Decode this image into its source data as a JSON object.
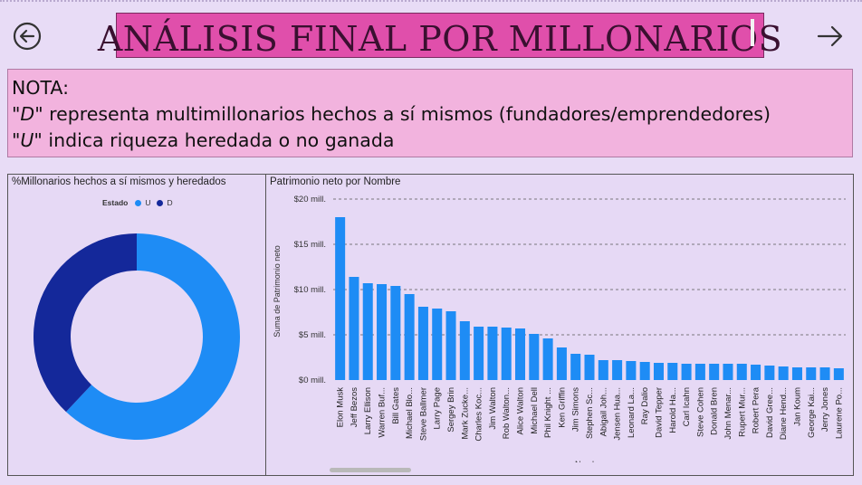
{
  "page": {
    "title": "ANÁLISIS FINAL POR MILLONARIOS",
    "back_icon": "arrow-left-circle-icon",
    "next_icon": "arrow-right-icon",
    "note": {
      "heading": "NOTA:",
      "line1_key": "\"D\"",
      "line1_text": " representa multimillonarios hechos a sí mismos (fundadores/emprendedores)",
      "line2_key": "\"U\"",
      "line2_text": " indica riqueza heredada o no ganada"
    },
    "colors": {
      "U": "#1e8cf5",
      "D": "#14289a",
      "title_bg": "#e04fab",
      "note_bg": "#f2b3de"
    }
  },
  "donut": {
    "title": "%Millonarios hechos a sí mismos y heredados",
    "legend_title": "Estado",
    "legend": [
      "U",
      "D"
    ]
  },
  "bar": {
    "title": "Patrimonio neto por Nombre"
  },
  "chart_data": [
    {
      "type": "pie",
      "variant": "donut",
      "title": "%Millonarios hechos a sí mismos y heredados",
      "legend_title": "Estado",
      "legend_position": "top",
      "slices": [
        {
          "label": "U",
          "value": 62,
          "color": "#1e8cf5"
        },
        {
          "label": "D",
          "value": 38,
          "color": "#14289a"
        }
      ]
    },
    {
      "type": "bar",
      "title": "Patrimonio neto por Nombre",
      "xlabel": "Nombre",
      "ylabel": "Suma de Patrimonio neto",
      "ylim": [
        0,
        20
      ],
      "yticks": [
        "$0 mill.",
        "$5 mill.",
        "$10 mill.",
        "$15 mill.",
        "$20 mill."
      ],
      "grid": true,
      "color": "#1e8cf5",
      "categories": [
        "Elon Musk",
        "Jeff Bezos",
        "Larry Ellison",
        "Warren Buf...",
        "Bill Gates",
        "Michael Blo...",
        "Steve Ballmer",
        "Larry Page",
        "Sergey Brin",
        "Mark Zucke...",
        "Charles Koc...",
        "Jim Walton",
        "Rob Walton...",
        "Alice Walton",
        "Michael Dell",
        "Phil Knight ...",
        "Ken Griffin",
        "Jim Simons",
        "Stephen Sc...",
        "Abigail Joh...",
        "Jensen Hua...",
        "Leonard La...",
        "Ray Dalio",
        "David Tepper",
        "Harold Ha...",
        "Carl Icahn",
        "Steve Cohen",
        "Donald Bren",
        "John Menar...",
        "Rupert Mur...",
        "Robert Pera",
        "David Gree...",
        "Diane Hend...",
        "Jan Koum",
        "George Kai...",
        "Jerry Jones",
        "Laurene Po..."
      ],
      "values": [
        18.0,
        11.4,
        10.7,
        10.6,
        10.4,
        9.5,
        8.1,
        7.9,
        7.6,
        6.5,
        5.9,
        5.9,
        5.8,
        5.7,
        5.1,
        4.6,
        3.6,
        2.9,
        2.8,
        2.2,
        2.2,
        2.1,
        2.0,
        1.9,
        1.9,
        1.8,
        1.8,
        1.8,
        1.8,
        1.8,
        1.7,
        1.6,
        1.5,
        1.4,
        1.4,
        1.4,
        1.3
      ]
    }
  ]
}
